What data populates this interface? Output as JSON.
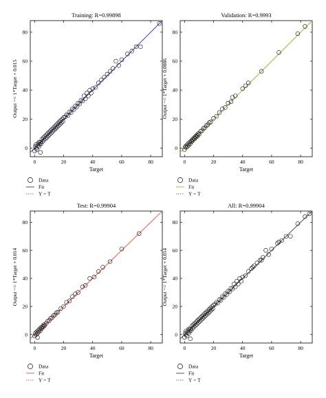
{
  "figure": {
    "legend": {
      "data_label": "Data",
      "fit_label": "Fit",
      "yt_label": "Y = T"
    }
  },
  "chart_data": [
    {
      "type": "scatter",
      "title": "Training: R=0.99898",
      "xlabel": "Target",
      "ylabel": "Output ~= 1*Target + 0.015",
      "xlim": [
        -3,
        88
      ],
      "ylim": [
        -6,
        88
      ],
      "xticks": [
        0,
        20,
        40,
        60,
        80
      ],
      "yticks": [
        0,
        20,
        40,
        60,
        80
      ],
      "fit": {
        "slope": 1,
        "intercept": 0.015,
        "color": "#3f48cc"
      },
      "yt_line": true,
      "legend_position": "below",
      "points": [
        [
          0,
          -2
        ],
        [
          0.5,
          1
        ],
        [
          1,
          0
        ],
        [
          1,
          2.5
        ],
        [
          1.5,
          -1
        ],
        [
          2,
          1.5
        ],
        [
          2.5,
          3
        ],
        [
          3,
          1
        ],
        [
          3,
          4
        ],
        [
          3.5,
          2.5
        ],
        [
          4,
          4
        ],
        [
          4.5,
          3
        ],
        [
          5,
          6
        ],
        [
          5.5,
          4.5
        ],
        [
          6,
          7
        ],
        [
          6.5,
          5.5
        ],
        [
          7,
          8
        ],
        [
          7.5,
          6.5
        ],
        [
          8,
          9
        ],
        [
          8.5,
          7.5
        ],
        [
          9,
          10
        ],
        [
          9.5,
          8.5
        ],
        [
          10,
          11
        ],
        [
          10.5,
          9.5
        ],
        [
          11,
          12
        ],
        [
          11.5,
          10.5
        ],
        [
          12,
          13
        ],
        [
          12.5,
          11.5
        ],
        [
          13,
          14
        ],
        [
          13.5,
          12.5
        ],
        [
          14,
          15
        ],
        [
          14.5,
          13.5
        ],
        [
          15,
          16
        ],
        [
          15.5,
          14.5
        ],
        [
          16,
          17
        ],
        [
          16.5,
          15.5
        ],
        [
          17,
          18
        ],
        [
          17.5,
          16.5
        ],
        [
          18,
          19
        ],
        [
          18.5,
          17.5
        ],
        [
          19,
          20
        ],
        [
          19.5,
          18.5
        ],
        [
          20,
          21
        ],
        [
          21,
          21.5
        ],
        [
          22,
          23
        ],
        [
          23,
          22.5
        ],
        [
          24,
          25
        ],
        [
          25,
          24.5
        ],
        [
          26,
          27
        ],
        [
          27,
          26.5
        ],
        [
          28,
          29
        ],
        [
          29,
          28.5
        ],
        [
          30,
          31
        ],
        [
          31,
          30.5
        ],
        [
          32,
          33
        ],
        [
          33,
          32.5
        ],
        [
          34,
          36
        ],
        [
          35,
          34
        ],
        [
          36,
          38
        ],
        [
          37,
          36
        ],
        [
          38,
          40
        ],
        [
          39,
          38
        ],
        [
          40,
          41
        ],
        [
          42,
          42
        ],
        [
          44,
          45
        ],
        [
          46,
          47
        ],
        [
          48,
          49
        ],
        [
          50,
          51
        ],
        [
          52,
          53
        ],
        [
          54,
          55
        ],
        [
          56,
          60
        ],
        [
          58,
          57
        ],
        [
          60,
          61
        ],
        [
          64,
          65
        ],
        [
          67,
          67
        ],
        [
          70,
          70
        ],
        [
          73,
          70
        ],
        [
          86,
          86
        ],
        [
          4,
          -3
        ]
      ]
    },
    {
      "type": "scatter",
      "title": "Validation: R=0.9993",
      "xlabel": "Target",
      "ylabel": "Output ~= 1*Target + 0.0086",
      "xlim": [
        -3,
        88
      ],
      "ylim": [
        -6,
        88
      ],
      "xticks": [
        0,
        20,
        40,
        60,
        80
      ],
      "yticks": [
        0,
        20,
        40,
        60,
        80
      ],
      "fit": {
        "slope": 1,
        "intercept": 0.0086,
        "color": "#9ac241"
      },
      "yt_line": true,
      "legend_position": "below",
      "points": [
        [
          0,
          -1
        ],
        [
          0.5,
          1
        ],
        [
          1,
          0.5
        ],
        [
          1.5,
          2
        ],
        [
          2,
          1
        ],
        [
          2.5,
          3
        ],
        [
          3,
          2
        ],
        [
          3.5,
          4
        ],
        [
          4,
          3
        ],
        [
          4.5,
          5
        ],
        [
          5,
          4.5
        ],
        [
          5.5,
          6
        ],
        [
          6,
          5.5
        ],
        [
          6.5,
          7
        ],
        [
          7,
          6.5
        ],
        [
          7.5,
          8
        ],
        [
          8,
          7.5
        ],
        [
          8.5,
          9
        ],
        [
          9,
          8.5
        ],
        [
          9.5,
          10
        ],
        [
          10,
          9.5
        ],
        [
          11,
          11.5
        ],
        [
          12,
          12
        ],
        [
          13,
          13.5
        ],
        [
          14,
          14
        ],
        [
          15,
          15.5
        ],
        [
          16,
          16
        ],
        [
          17,
          17.5
        ],
        [
          18,
          18
        ],
        [
          20,
          20.5
        ],
        [
          22,
          22
        ],
        [
          24,
          24.5
        ],
        [
          26,
          27
        ],
        [
          28,
          28
        ],
        [
          30,
          31
        ],
        [
          32,
          32
        ],
        [
          33,
          35
        ],
        [
          35,
          36
        ],
        [
          40,
          41
        ],
        [
          42,
          43
        ],
        [
          44,
          45
        ],
        [
          53,
          53
        ],
        [
          65,
          66
        ],
        [
          78,
          79
        ],
        [
          83,
          84
        ]
      ]
    },
    {
      "type": "scatter",
      "title": "Test: R=0.99904",
      "xlabel": "Target",
      "ylabel": "Output ~= 1*Target + 0.014",
      "xlim": [
        -3,
        88
      ],
      "ylim": [
        -6,
        88
      ],
      "xticks": [
        0,
        20,
        40,
        60,
        80
      ],
      "yticks": [
        0,
        20,
        40,
        60,
        80
      ],
      "fit": {
        "slope": 1,
        "intercept": 0.014,
        "color": "#e8674a"
      },
      "yt_line": true,
      "legend_position": "below",
      "points": [
        [
          0,
          -1
        ],
        [
          0.5,
          1
        ],
        [
          1,
          0
        ],
        [
          1.5,
          2
        ],
        [
          2,
          1
        ],
        [
          2.5,
          3
        ],
        [
          3,
          2
        ],
        [
          3.5,
          4
        ],
        [
          4,
          3
        ],
        [
          4.5,
          5
        ],
        [
          5,
          4.5
        ],
        [
          5.5,
          6
        ],
        [
          6,
          5.5
        ],
        [
          6.5,
          7
        ],
        [
          7,
          6.5
        ],
        [
          8,
          8
        ],
        [
          9,
          9.5
        ],
        [
          10,
          10
        ],
        [
          11,
          11.5
        ],
        [
          12,
          12
        ],
        [
          13,
          13.5
        ],
        [
          14,
          14
        ],
        [
          15,
          15.5
        ],
        [
          16,
          16
        ],
        [
          18,
          18.5
        ],
        [
          20,
          20
        ],
        [
          22,
          23
        ],
        [
          24,
          24
        ],
        [
          26,
          27
        ],
        [
          28,
          29
        ],
        [
          30,
          30
        ],
        [
          33,
          34
        ],
        [
          35,
          35
        ],
        [
          38,
          40
        ],
        [
          41,
          41
        ],
        [
          44,
          45
        ],
        [
          47,
          48
        ],
        [
          52,
          52
        ],
        [
          60,
          61
        ],
        [
          72,
          72
        ],
        [
          2,
          -2
        ]
      ]
    },
    {
      "type": "scatter",
      "title": "All: R=0.99904",
      "xlabel": "Target",
      "ylabel": "Output ~= 1*Target + 0.014",
      "xlim": [
        -3,
        88
      ],
      "ylim": [
        -6,
        88
      ],
      "xticks": [
        0,
        20,
        40,
        60,
        80
      ],
      "yticks": [
        0,
        20,
        40,
        60,
        80
      ],
      "fit": {
        "slope": 1,
        "intercept": 0.014,
        "color": "#555555"
      },
      "yt_line": true,
      "legend_position": "below",
      "points": [
        [
          0,
          -2
        ],
        [
          0.5,
          1
        ],
        [
          1,
          0
        ],
        [
          1,
          2.5
        ],
        [
          1.5,
          -1
        ],
        [
          2,
          1.5
        ],
        [
          2.5,
          3
        ],
        [
          3,
          1
        ],
        [
          3,
          4
        ],
        [
          3.5,
          2.5
        ],
        [
          4,
          4
        ],
        [
          4.5,
          3
        ],
        [
          5,
          6
        ],
        [
          5.5,
          4.5
        ],
        [
          6,
          7
        ],
        [
          6.5,
          5.5
        ],
        [
          7,
          8
        ],
        [
          7.5,
          6.5
        ],
        [
          8,
          9
        ],
        [
          8.5,
          7.5
        ],
        [
          9,
          10
        ],
        [
          9.5,
          8.5
        ],
        [
          10,
          11
        ],
        [
          10.5,
          9.5
        ],
        [
          11,
          12
        ],
        [
          11.5,
          10.5
        ],
        [
          12,
          13
        ],
        [
          12.5,
          11.5
        ],
        [
          13,
          14
        ],
        [
          13.5,
          12.5
        ],
        [
          14,
          15
        ],
        [
          14.5,
          13.5
        ],
        [
          15,
          16
        ],
        [
          15.5,
          14.5
        ],
        [
          16,
          17
        ],
        [
          16.5,
          15.5
        ],
        [
          17,
          18
        ],
        [
          17.5,
          16.5
        ],
        [
          18,
          19
        ],
        [
          18.5,
          17.5
        ],
        [
          19,
          20
        ],
        [
          19.5,
          18.5
        ],
        [
          20,
          21
        ],
        [
          21,
          21.5
        ],
        [
          22,
          23
        ],
        [
          23,
          22.5
        ],
        [
          24,
          25
        ],
        [
          25,
          24.5
        ],
        [
          26,
          27
        ],
        [
          27,
          26.5
        ],
        [
          28,
          29
        ],
        [
          29,
          28.5
        ],
        [
          30,
          31
        ],
        [
          31,
          30.5
        ],
        [
          32,
          33
        ],
        [
          33,
          32.5
        ],
        [
          34,
          36
        ],
        [
          35,
          34
        ],
        [
          36,
          38
        ],
        [
          37,
          36
        ],
        [
          38,
          40
        ],
        [
          39,
          38
        ],
        [
          40,
          41
        ],
        [
          42,
          42
        ],
        [
          44,
          45
        ],
        [
          46,
          47
        ],
        [
          48,
          49
        ],
        [
          50,
          51
        ],
        [
          52,
          53
        ],
        [
          54,
          55
        ],
        [
          56,
          60
        ],
        [
          58,
          57
        ],
        [
          60,
          61
        ],
        [
          64,
          65
        ],
        [
          67,
          67
        ],
        [
          70,
          70
        ],
        [
          73,
          70
        ],
        [
          78,
          79
        ],
        [
          83,
          84
        ],
        [
          86,
          86
        ],
        [
          4,
          -3
        ],
        [
          53,
          53
        ],
        [
          65,
          66
        ],
        [
          47,
          48
        ]
      ]
    }
  ]
}
